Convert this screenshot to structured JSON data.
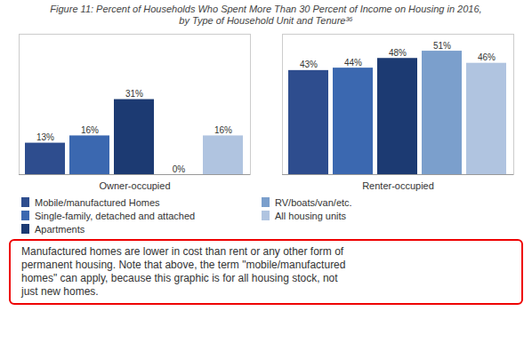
{
  "chart_data": {
    "type": "bar",
    "title": "Figure 11: Percent of Households Who Spent More Than 30 Percent of Income on Housing in 2016,",
    "subtitle": "by Type of Household Unit and Tenure³⁶",
    "categories": [
      "Owner-occupied",
      "Renter-occupied"
    ],
    "series": [
      {
        "name": "Mobile/manufactured Homes",
        "color": "#2E4D8E",
        "values": [
          13,
          43
        ],
        "value_labels": [
          "13%",
          "43%"
        ]
      },
      {
        "name": "Single-family, detached and attached",
        "color": "#3B68B0",
        "values": [
          16,
          44
        ],
        "value_labels": [
          "16%",
          "44%"
        ]
      },
      {
        "name": "Apartments",
        "color": "#1C3A72",
        "values": [
          31,
          48
        ],
        "value_labels": [
          "31%",
          "48%"
        ]
      },
      {
        "name": "RV/boats/van/etc.",
        "color": "#7B9FCC",
        "values": [
          0,
          51
        ],
        "value_labels": [
          "0%",
          "51%"
        ]
      },
      {
        "name": "All housing units",
        "color": "#B0C4E0",
        "values": [
          16,
          46
        ],
        "value_labels": [
          "16%",
          "46%"
        ]
      }
    ],
    "ylim": [
      0,
      58
    ],
    "data_labels": true,
    "tick_labels": "x",
    "grid": false,
    "legend": "bottom",
    "annotation": "Manufactured homes are lower in cost than rent or any other form of\npermanent housing. Note that above, the term \"mobile/manufactured\nhomes\" can apply, because this graphic is for all housing stock, not\njust new homes."
  }
}
